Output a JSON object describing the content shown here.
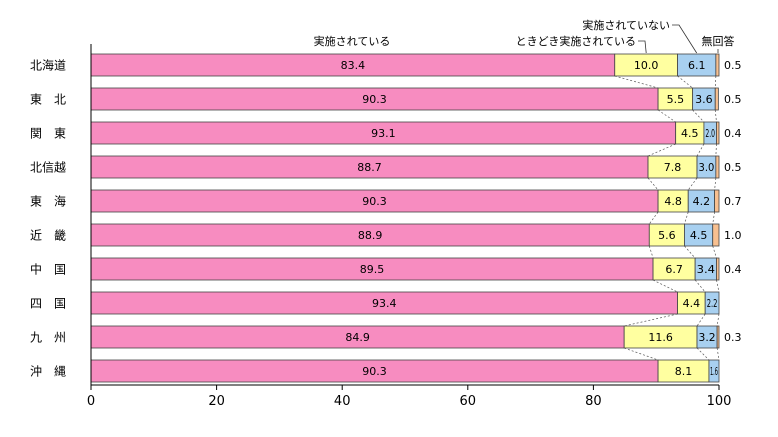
{
  "chart_data": {
    "type": "bar",
    "orientation": "horizontal",
    "stacked": true,
    "categories": [
      "北海道",
      "東　北",
      "関　東",
      "北信越",
      "東　海",
      "近　畿",
      "中　国",
      "四　国",
      "九　州",
      "沖　縄"
    ],
    "series": [
      {
        "name": "実施されている",
        "color": "#f78cc0",
        "values": [
          83.4,
          90.3,
          93.1,
          88.7,
          90.3,
          88.9,
          89.5,
          93.4,
          84.9,
          90.3
        ],
        "labels": [
          "83.4",
          "90.3",
          "93.1",
          "88.7",
          "90.3",
          "88.9",
          "89.5",
          "93.4",
          "84.9",
          "90.3"
        ]
      },
      {
        "name": "ときどき実施されている",
        "color": "#ffffa0",
        "values": [
          10.0,
          5.5,
          4.5,
          7.8,
          4.8,
          5.6,
          6.7,
          4.4,
          11.6,
          8.1
        ],
        "labels": [
          "10.0",
          "5.5",
          "4.5",
          "7.8",
          "4.8",
          "5.6",
          "6.7",
          "4.4",
          "11.6",
          "8.1"
        ]
      },
      {
        "name": "実施されていない",
        "color": "#a8d0f0",
        "values": [
          6.1,
          3.6,
          2.0,
          3.0,
          4.2,
          4.5,
          3.4,
          2.2,
          3.2,
          1.6
        ],
        "labels": [
          "6.1",
          "3.6",
          "2.0",
          "3.0",
          "4.2",
          "4.5",
          "3.4",
          "2.2",
          "3.2",
          "1.6"
        ]
      },
      {
        "name": "無回答",
        "color": "#f8c090",
        "values": [
          0.5,
          0.5,
          0.4,
          0.5,
          0.7,
          1.0,
          0.4,
          0,
          0.3,
          0
        ],
        "labels": [
          "0.5",
          "0.5",
          "0.4",
          "0.5",
          "0.7",
          "1.0",
          "0.4",
          "",
          "0.3",
          ""
        ]
      }
    ],
    "xlim": [
      0,
      100
    ],
    "xticks": [
      0,
      20,
      40,
      60,
      80,
      100
    ],
    "xtick_labels": [
      "0",
      "20",
      "40",
      "60",
      "80",
      "100"
    ],
    "grid": false,
    "legend": "top, labels with leader lines"
  }
}
